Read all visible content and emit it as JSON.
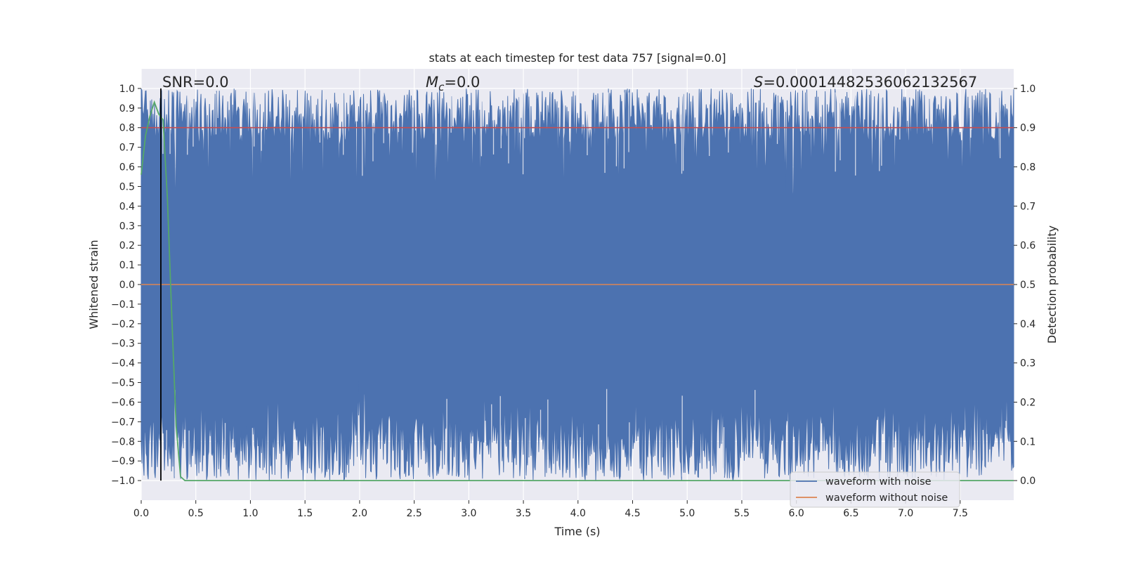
{
  "chart_data": {
    "type": "line",
    "title": "stats at each timestep for test data 757 [signal=0.0]",
    "xlabel": "Time (s)",
    "ylabel_left": "Whitened strain",
    "ylabel_right": "Detection probability",
    "xlim": [
      0.0,
      7.99
    ],
    "ylim_left": [
      -1.1,
      1.1
    ],
    "ylim_right": [
      -0.05,
      1.05
    ],
    "xticks": [
      "0.0",
      "0.5",
      "1.0",
      "1.5",
      "2.0",
      "2.5",
      "3.0",
      "3.5",
      "4.0",
      "4.5",
      "5.0",
      "5.5",
      "6.0",
      "6.5",
      "7.0",
      "7.5"
    ],
    "xtick_values": [
      0.0,
      0.5,
      1.0,
      1.5,
      2.0,
      2.5,
      3.0,
      3.5,
      4.0,
      4.5,
      5.0,
      5.5,
      6.0,
      6.5,
      7.0,
      7.5
    ],
    "yticks_left": [
      "1.0",
      "0.9",
      "0.8",
      "0.7",
      "0.6",
      "0.5",
      "0.4",
      "0.3",
      "0.2",
      "0.1",
      "0.0",
      "−0.1",
      "−0.2",
      "−0.3",
      "−0.4",
      "−0.5",
      "−0.6",
      "−0.7",
      "−0.8",
      "−0.9",
      "−1.0"
    ],
    "ytick_values_left": [
      1.0,
      0.9,
      0.8,
      0.7,
      0.6,
      0.5,
      0.4,
      0.3,
      0.2,
      0.1,
      0.0,
      -0.1,
      -0.2,
      -0.3,
      -0.4,
      -0.5,
      -0.6,
      -0.7,
      -0.8,
      -0.9,
      -1.0
    ],
    "yticks_right": [
      "1.0",
      "0.9",
      "0.8",
      "0.7",
      "0.6",
      "0.5",
      "0.4",
      "0.3",
      "0.2",
      "0.1",
      "0.0"
    ],
    "ytick_values_right": [
      1.0,
      0.9,
      0.8,
      0.7,
      0.6,
      0.5,
      0.4,
      0.3,
      0.2,
      0.1,
      0.0
    ],
    "gridlines_left": [
      1.0,
      0.8,
      0.6,
      0.4,
      0.2,
      0.0,
      -0.2,
      -0.4,
      -0.6,
      -0.8,
      -1.0
    ],
    "series": [
      {
        "name": "waveform with noise",
        "color": "#4c72b0",
        "description_range": [
          -1.0,
          1.0
        ]
      },
      {
        "name": "waveform without noise",
        "color": "#dd8452",
        "values_constant": 0.0
      },
      {
        "name": "detection probability",
        "color": "#55a868",
        "x": [
          0.0,
          0.04,
          0.08,
          0.12,
          0.16,
          0.2,
          0.24,
          0.28,
          0.32,
          0.36,
          0.4,
          7.99
        ],
        "y": [
          0.78,
          0.88,
          0.93,
          0.965,
          0.935,
          0.92,
          0.72,
          0.42,
          0.14,
          0.01,
          0.0,
          0.0
        ]
      },
      {
        "name": "threshold",
        "color": "#c44e52",
        "values_constant": 0.9
      }
    ],
    "marker_x": 0.18,
    "marker_color": "#000000",
    "annotations": {
      "snr": "SNR=0.0",
      "mc_symbol": "M",
      "mc_sub": "c",
      "mc_value": "=0.0",
      "s_symbol": "S",
      "s_value": "=0.00014482536062132567"
    },
    "legend": {
      "placement": "lower-right",
      "entries": [
        "waveform with noise",
        "waveform without noise"
      ]
    }
  },
  "colors": {
    "plot_bg": "#eaeaf2",
    "grid": "#ffffff",
    "noise": "#4c72b0",
    "clean": "#dd8452",
    "prob": "#55a868",
    "threshold": "#c44e52"
  }
}
